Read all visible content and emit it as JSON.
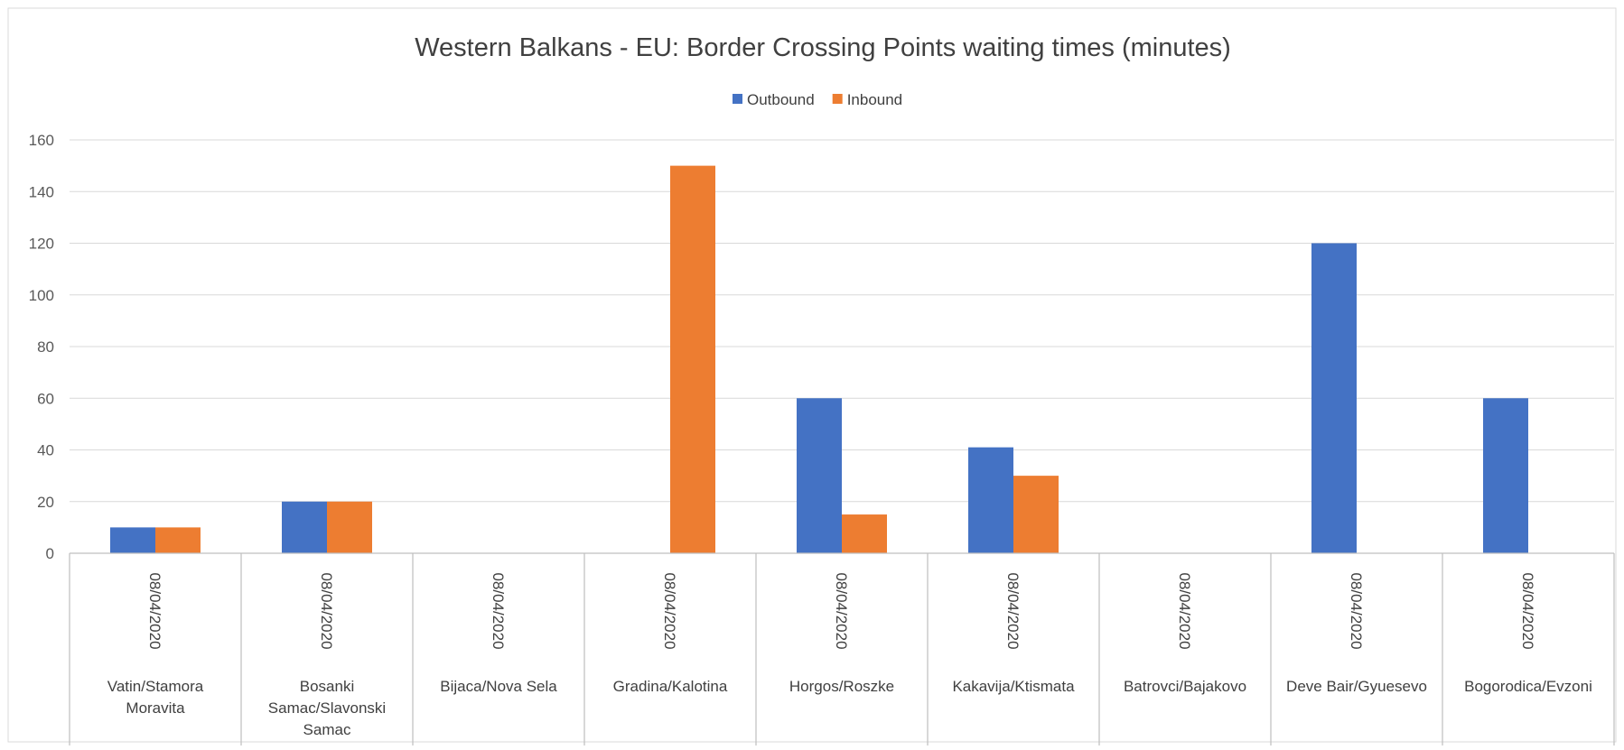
{
  "chart_data": {
    "type": "bar",
    "title": "Western Balkans - EU: Border Crossing Points waiting times (minutes)",
    "xlabel": "",
    "ylabel": "",
    "ylim": [
      0,
      160
    ],
    "yticks": [
      0,
      20,
      40,
      60,
      80,
      100,
      120,
      140,
      160
    ],
    "grid": true,
    "legend_position": "top",
    "categories": [
      {
        "date": "08/04/2020",
        "name": [
          "Vatin/Stamora",
          "Moravita"
        ]
      },
      {
        "date": "08/04/2020",
        "name": [
          "Bosanki",
          "Samac/Slavonski",
          "Samac"
        ]
      },
      {
        "date": "08/04/2020",
        "name": [
          "Bijaca/Nova Sela"
        ]
      },
      {
        "date": "08/04/2020",
        "name": [
          "Gradina/Kalotina"
        ]
      },
      {
        "date": "08/04/2020",
        "name": [
          "Horgos/Roszke"
        ]
      },
      {
        "date": "08/04/2020",
        "name": [
          "Kakavija/Ktismata"
        ]
      },
      {
        "date": "08/04/2020",
        "name": [
          "Batrovci/Bajakovo"
        ]
      },
      {
        "date": "08/04/2020",
        "name": [
          "Deve Bair/Gyuesevo"
        ]
      },
      {
        "date": "08/04/2020",
        "name": [
          "Bogorodica/Evzoni"
        ]
      }
    ],
    "series": [
      {
        "name": "Outbound",
        "color": "#4472c4",
        "values": [
          10,
          20,
          0,
          0,
          60,
          41,
          0,
          120,
          60
        ]
      },
      {
        "name": "Inbound",
        "color": "#ed7d31",
        "values": [
          10,
          20,
          0,
          150,
          15,
          30,
          0,
          0,
          0
        ]
      }
    ]
  }
}
